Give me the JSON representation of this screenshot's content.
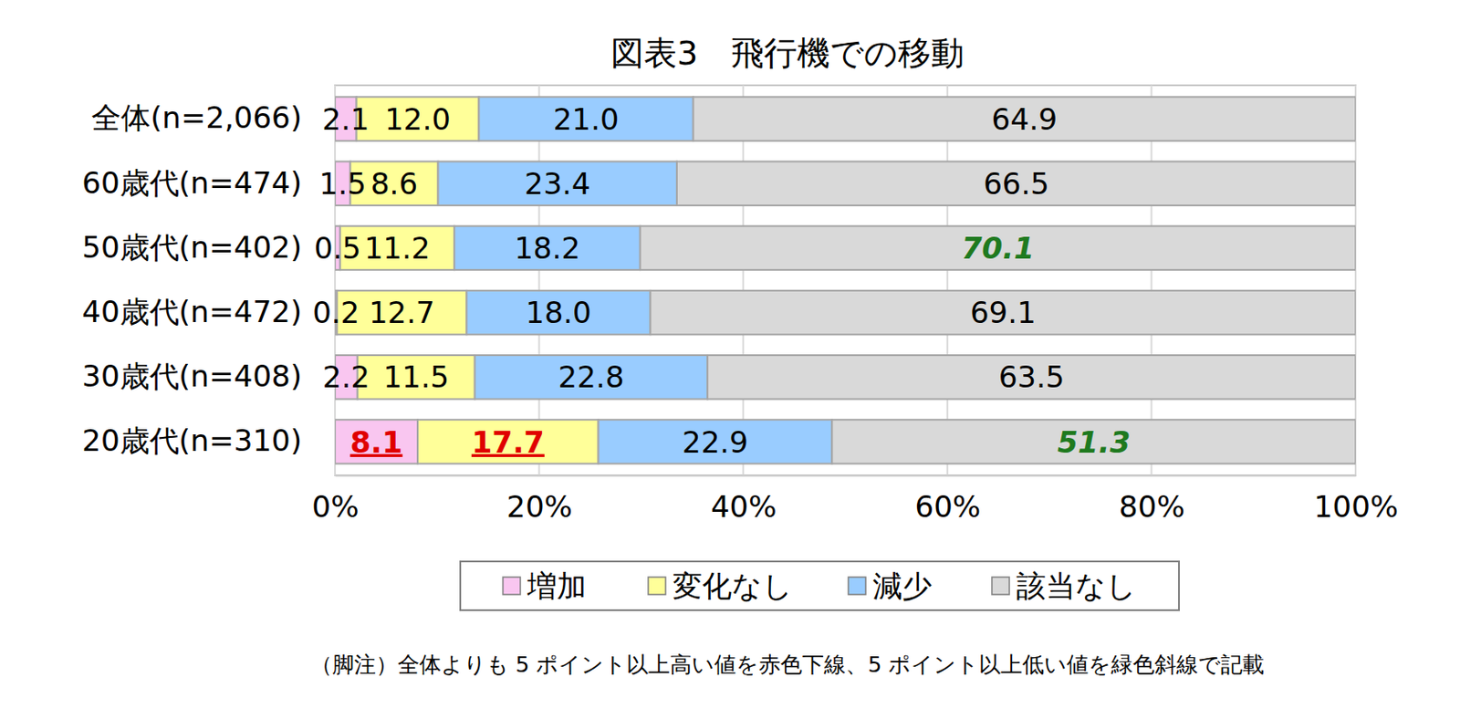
{
  "chart_data": {
    "type": "bar",
    "orientation": "horizontal",
    "stacked": true,
    "data_labels": true,
    "grid": true,
    "legend": "bottom",
    "title": "図表3　飛行機での移動",
    "annotations": [
      "（脚注）全体よりも 5 ポイント以上高い値を赤色下線、5 ポイント以上低い値を緑色斜線で記載"
    ],
    "categories": [
      "全体(n=2,066)",
      "60歳代(n=474)",
      "50歳代(n=402)",
      "40歳代(n=472)",
      "30歳代(n=408)",
      "20歳代(n=310)"
    ],
    "xlim": [
      0,
      100
    ],
    "xticks": [
      {
        "value": 0,
        "label": "0%"
      },
      {
        "value": 20,
        "label": "20%"
      },
      {
        "value": 40,
        "label": "40%"
      },
      {
        "value": 60,
        "label": "60%"
      },
      {
        "value": 80,
        "label": "80%"
      },
      {
        "value": 100,
        "label": "100%"
      }
    ],
    "series": [
      {
        "name": "増加",
        "color": "#f9c6f0",
        "values": [
          2.1,
          1.5,
          0.5,
          0.2,
          2.2,
          8.1
        ],
        "value_labels": [
          "2.1",
          "1.5",
          "0.5",
          "0.2",
          "2.2",
          "8.1"
        ]
      },
      {
        "name": "変化なし",
        "color": "#ffff99",
        "values": [
          12.0,
          8.6,
          11.2,
          12.7,
          11.5,
          17.7
        ],
        "value_labels": [
          "12.0",
          "8.6",
          "11.2",
          "12.7",
          "11.5",
          "17.7"
        ]
      },
      {
        "name": "減少",
        "color": "#99ccff",
        "values": [
          21.0,
          23.4,
          18.2,
          18.0,
          22.8,
          22.9
        ],
        "value_labels": [
          "21.0",
          "23.4",
          "18.2",
          "18.0",
          "22.8",
          "22.9"
        ]
      },
      {
        "name": "該当なし",
        "color": "#d9d9d9",
        "values": [
          64.9,
          66.5,
          70.1,
          69.1,
          63.5,
          51.3
        ],
        "value_labels": [
          "64.9",
          "66.5",
          "70.1",
          "69.1",
          "63.5",
          "51.3"
        ]
      }
    ]
  }
}
